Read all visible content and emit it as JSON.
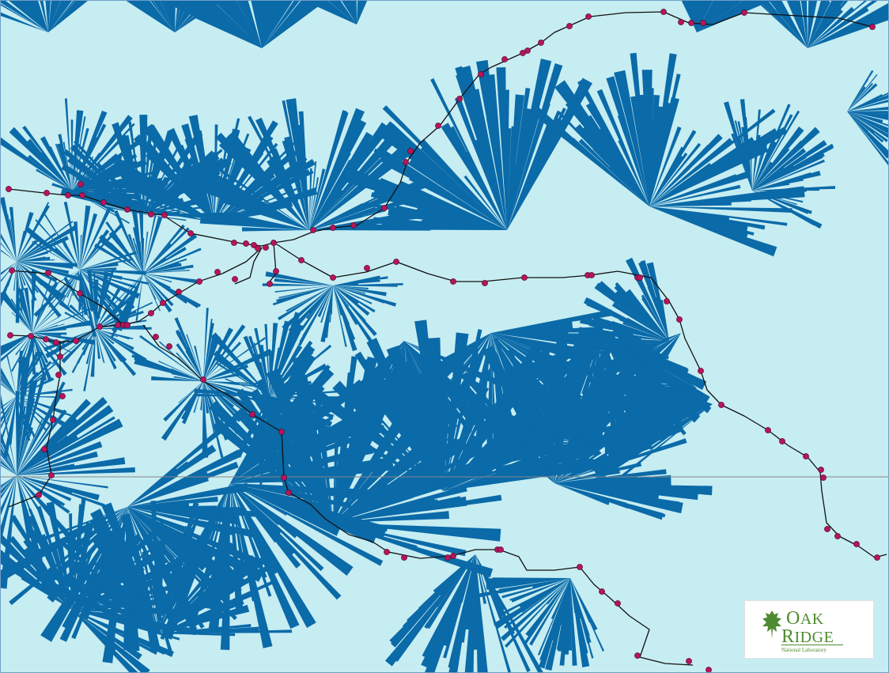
{
  "map": {
    "land_color": "#c6edf2",
    "coverage_color": "#0b6aa8",
    "route_color": "#111111",
    "stop_color": "#b5155b",
    "grid_line_color": "#888888"
  },
  "logo": {
    "word1_initial": "O",
    "word1_rest": "AK",
    "word2_initial": "R",
    "word2_rest": "IDGE",
    "subtitle": "National Laboratory",
    "icon": "oak-leaf-icon",
    "color": "#4f8b30"
  }
}
